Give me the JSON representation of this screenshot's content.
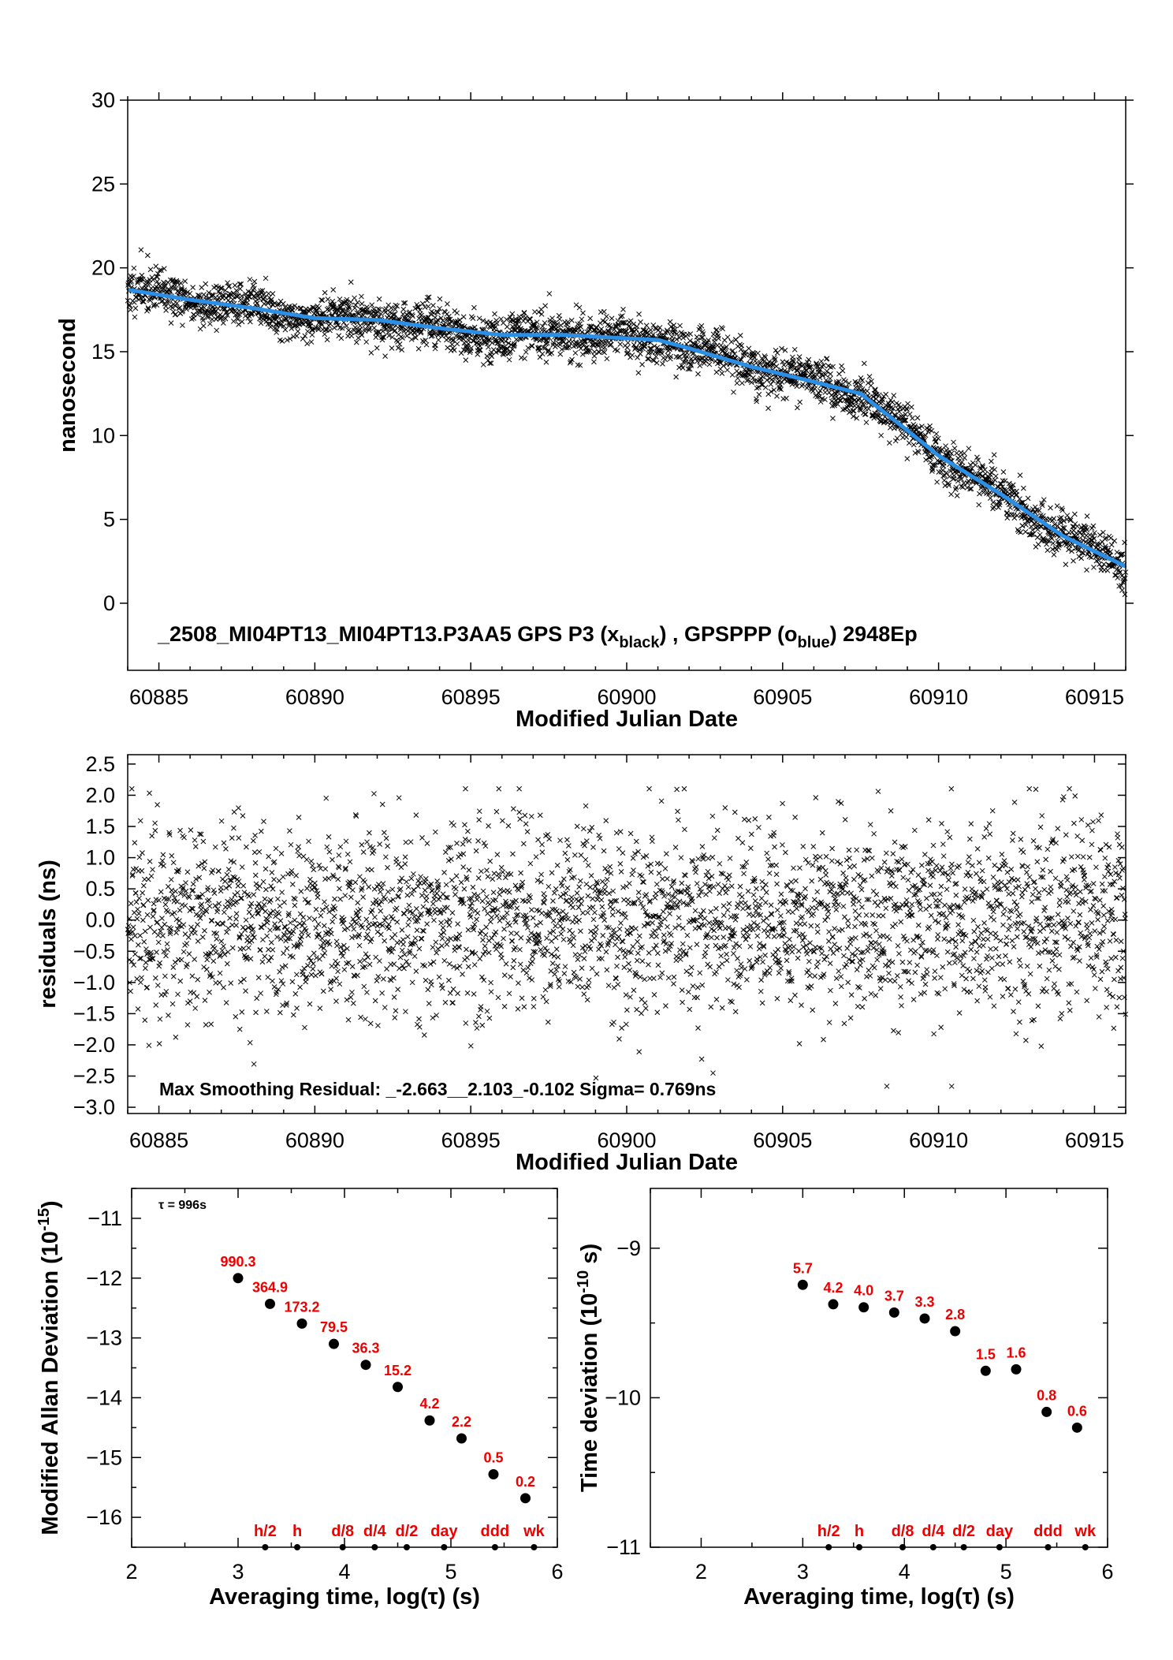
{
  "chart_data": [
    {
      "type": "scatter",
      "title": "_2508_MI04PT13_MI04PT13.P3AA5     GPS P3 (x_black) ,  GPSPPP (o_blue)  2948Ep",
      "title_parts": {
        "prefix": "_2508_MI04PT13_MI04PT13.P3AA5     GPS P3 (x",
        "sub1": "black",
        "mid": ") ,  GPSPPP (o",
        "sub2": "blue",
        "suffix": ")  2948Ep"
      },
      "xlabel": "Modified Julian Date",
      "ylabel": "nanosecond",
      "xlim": [
        60884,
        60916
      ],
      "ylim": [
        -4,
        30
      ],
      "xticks": [
        "60885",
        "60890",
        "60895",
        "60900",
        "60905",
        "60910",
        "60915"
      ],
      "yticks": [
        "0",
        "5",
        "10",
        "15",
        "20",
        "25",
        "30"
      ],
      "grid": false,
      "series": [
        {
          "marker": "x",
          "color": "#000000",
          "approx_point_count": 3000,
          "scatter_sigma_ns": 0.77
        },
        {
          "marker": "line",
          "color": "#2b8fe6",
          "x": [
            60884,
            60886,
            60888,
            60890,
            60892,
            60894,
            60896,
            60898,
            60900,
            60901,
            60902,
            60904,
            60906,
            60907.5,
            60909,
            60910,
            60912,
            60914,
            60916
          ],
          "y": [
            18.7,
            18.1,
            17.6,
            17.0,
            16.9,
            16.4,
            16.0,
            16.0,
            15.8,
            15.7,
            15.2,
            14.1,
            13.2,
            12.5,
            10.3,
            8.8,
            6.5,
            4.0,
            2.2
          ]
        }
      ]
    },
    {
      "type": "scatter",
      "annotation": "Max Smoothing Residual: _-2.663__2.103_-0.102  Sigma= 0.769ns",
      "xlabel": "Modified Julian Date",
      "ylabel": "residuals (ns)",
      "xlim": [
        60884,
        60916
      ],
      "ylim": [
        -3.1,
        2.65
      ],
      "xticks": [
        "60885",
        "60890",
        "60895",
        "60900",
        "60905",
        "60910",
        "60915"
      ],
      "yticks": [
        "2.5",
        "2.0",
        "1.5",
        "1.0",
        "0.5",
        "0.0",
        "−0.5",
        "−1.0",
        "−1.5",
        "−2.0",
        "−2.5",
        "−3.0"
      ],
      "grid": false,
      "series": [
        {
          "marker": "x",
          "color": "#000000",
          "approx_point_count": 3000,
          "sigma": 0.769,
          "min": -2.663,
          "max": 2.103
        }
      ]
    },
    {
      "type": "scatter",
      "annotation": "τ = 996s",
      "xlabel": "Averaging time, log(τ) (s)",
      "ylabel": "Modified Allan Deviation (10^-15)",
      "ylabel_parts": {
        "prefix": "Modified Allan Deviation (10",
        "sup": "-15",
        "suffix": ")"
      },
      "xlim": [
        2,
        6
      ],
      "ylim": [
        -16.5,
        -10.5
      ],
      "xticks": [
        "2",
        "3",
        "4",
        "5",
        "6"
      ],
      "yticks": [
        "−11",
        "−12",
        "−13",
        "−14",
        "−15",
        "−16"
      ],
      "grid": false,
      "series": [
        {
          "marker": "circle",
          "color": "#000000",
          "x": [
            3.0,
            3.3,
            3.6,
            3.9,
            4.2,
            4.5,
            4.8,
            5.1,
            5.4,
            5.7
          ],
          "y": [
            -12.0,
            -12.43,
            -12.76,
            -13.1,
            -13.45,
            -13.82,
            -14.38,
            -14.68,
            -15.28,
            -15.68
          ],
          "labels": [
            "990.3",
            "364.9",
            "173.2",
            "79.5",
            "36.3",
            "15.2",
            "4.2",
            "2.2",
            "0.5",
            "0.2"
          ]
        }
      ],
      "time_markers": {
        "x": [
          3.255,
          3.556,
          3.983,
          4.284,
          4.585,
          4.936,
          5.414,
          5.781
        ],
        "labels": [
          "h/2",
          "h",
          "d/8",
          "d/4",
          "d/2",
          "day",
          "ddd",
          "wk"
        ]
      },
      "label_color": "#ee0000"
    },
    {
      "type": "scatter",
      "xlabel": "Averaging time, log(τ) (s)",
      "ylabel": "Time deviation (10^-10 s)",
      "ylabel_parts": {
        "prefix": "Time deviation (10",
        "sup": "-10",
        "suffix": " s)"
      },
      "xlim": [
        1.5,
        6
      ],
      "ylim": [
        -11,
        -8.6
      ],
      "xticks": [
        "2",
        "3",
        "4",
        "5",
        "6"
      ],
      "yticks": [
        "−9",
        "−10",
        "−11"
      ],
      "grid": false,
      "series": [
        {
          "marker": "circle",
          "color": "#000000",
          "x": [
            3.0,
            3.3,
            3.6,
            3.9,
            4.2,
            4.5,
            4.8,
            5.1,
            5.4,
            5.7
          ],
          "y": [
            -9.245,
            -9.375,
            -9.395,
            -9.43,
            -9.47,
            -9.555,
            -9.82,
            -9.81,
            -10.095,
            -10.2
          ],
          "labels": [
            "5.7",
            "4.2",
            "4.0",
            "3.7",
            "3.3",
            "2.8",
            "1.5",
            "1.6",
            "0.8",
            "0.6"
          ]
        }
      ],
      "time_markers": {
        "x": [
          3.255,
          3.556,
          3.983,
          4.284,
          4.585,
          4.936,
          5.414,
          5.781
        ],
        "labels": [
          "h/2",
          "h",
          "d/8",
          "d/4",
          "d/2",
          "day",
          "ddd",
          "wk"
        ]
      },
      "label_color": "#ee0000"
    }
  ]
}
